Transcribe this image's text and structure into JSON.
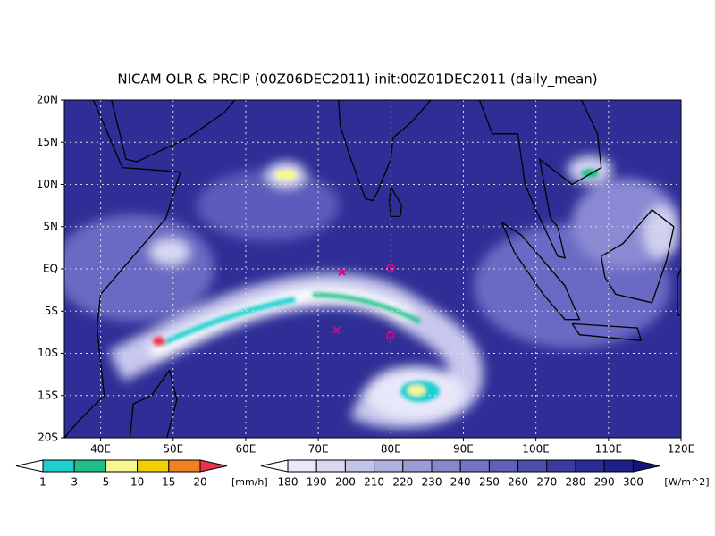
{
  "title": "NICAM OLR & PRCIP (00Z06DEC2011) init:00Z01DEC2011 (daily_mean)",
  "map": {
    "lon_ticks": [
      "40E",
      "50E",
      "60E",
      "70E",
      "80E",
      "90E",
      "100E",
      "110E",
      "120E"
    ],
    "lat_ticks": [
      "20N",
      "15N",
      "10N",
      "5N",
      "EQ",
      "5S",
      "10S",
      "15S",
      "20S"
    ]
  },
  "colorbars": [
    {
      "labels": [
        1,
        3,
        5,
        10,
        15,
        20
      ],
      "unit": "[mm/h]",
      "colors": [
        "#ffffff",
        "#1ecfd0",
        "#1ec088",
        "#f8f890",
        "#f0d000",
        "#f08020",
        "#f03050"
      ]
    },
    {
      "labels": [
        180,
        190,
        200,
        210,
        220,
        230,
        240,
        250,
        260,
        270,
        280,
        290,
        300
      ],
      "unit": "[W/m^2]",
      "colors": [
        "#ffffff",
        "#e8e8f8",
        "#d8d8f0",
        "#c4c4e8",
        "#b0b0e0",
        "#9c9cd8",
        "#8888cc",
        "#7474c4",
        "#6060b8",
        "#4e4eac",
        "#3c3ca0",
        "#2c2c96",
        "#20208a",
        "#141480"
      ]
    }
  ]
}
